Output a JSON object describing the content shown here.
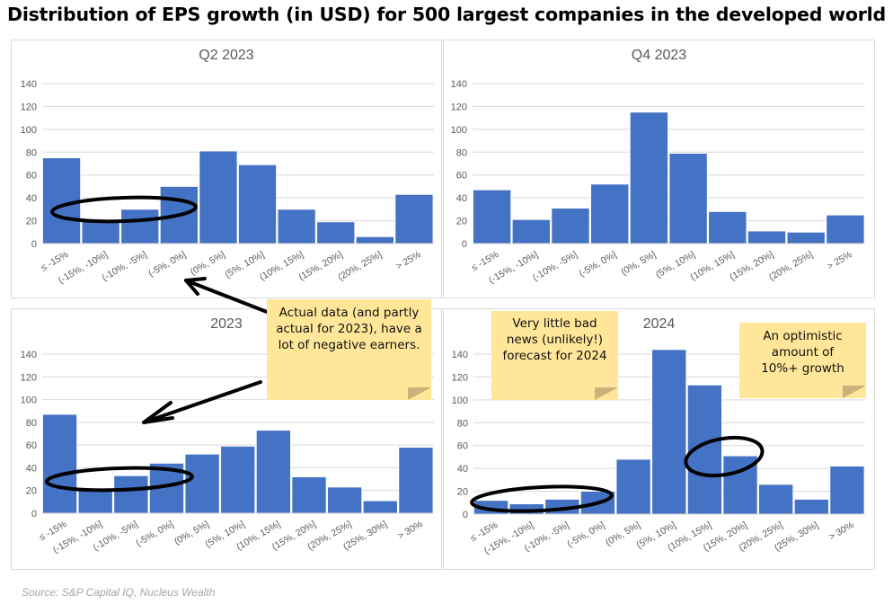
{
  "title": "Distribution of EPS growth (in USD) for 500 largest companies in the developed world",
  "source": "Source: S&P Capital IQ, Nucleus Wealth",
  "colors": {
    "bar": "#4472c4",
    "note": "#ffe699",
    "grid": "#d9d9d9"
  },
  "notes": [
    "Actual data (and partly actual for 2023), have a lot of negative earners.",
    "Very little bad news (unlikely!) forecast for 2024",
    "An optimistic amount of 10%+ growth"
  ],
  "chart_data": [
    {
      "type": "bar",
      "title": "Q2 2023",
      "ylim": [
        0,
        140
      ],
      "yticks": [
        0,
        20,
        40,
        60,
        80,
        100,
        120,
        140
      ],
      "grid": true,
      "categories": [
        "≤ -15%",
        "(-15%, -10%]",
        "(-10%, -5%]",
        "(-5%, 0%]",
        "(0%, 5%]",
        "(5%, 10%]",
        "(10%, 15%]",
        "(15%, 20%]",
        "(20%, 25%]",
        "> 25%"
      ],
      "values": [
        75,
        20,
        30,
        50,
        81,
        69,
        30,
        19,
        6,
        43
      ]
    },
    {
      "type": "bar",
      "title": "Q4 2023",
      "ylim": [
        0,
        140
      ],
      "yticks": [
        0,
        20,
        40,
        60,
        80,
        100,
        120,
        140
      ],
      "grid": true,
      "categories": [
        "≤ -15%",
        "(-15%, -10%]",
        "(-10%, -5%]",
        "(-5%, 0%]",
        "(0%, 5%]",
        "(5%, 10%]",
        "(10%, 15%]",
        "(15%, 20%]",
        "(20%, 25%]",
        "> 25%"
      ],
      "values": [
        47,
        21,
        31,
        52,
        115,
        79,
        28,
        11,
        10,
        25
      ]
    },
    {
      "type": "bar",
      "title": "2023",
      "ylim": [
        0,
        140
      ],
      "yticks": [
        0,
        20,
        40,
        60,
        80,
        100,
        120,
        140
      ],
      "grid": true,
      "categories": [
        "≤ -15%",
        "(-15%, -10%]",
        "(-10%, -5%]",
        "(-5%, 0%]",
        "(0%, 5%]",
        "(5%, 10%]",
        "(10%, 15%]",
        "(15%, 20%]",
        "(20%, 25%]",
        "(25%, 30%]",
        "> 30%"
      ],
      "values": [
        87,
        21,
        33,
        44,
        52,
        59,
        73,
        32,
        23,
        11,
        58
      ]
    },
    {
      "type": "bar",
      "title": "2024",
      "ylim": [
        0,
        140
      ],
      "yticks": [
        0,
        20,
        40,
        60,
        80,
        100,
        120,
        140
      ],
      "grid": true,
      "categories": [
        "≤ -15%",
        "(-15%, -10%]",
        "(-10%, -5%]",
        "(-5%, 0%]",
        "(0%, 5%]",
        "(5%, 10%]",
        "(10%, 15%]",
        "(15%, 20%]",
        "(20%, 25%]",
        "(25%, 30%]",
        "> 30%"
      ],
      "values": [
        12,
        9,
        13,
        20,
        48,
        144,
        113,
        51,
        26,
        13,
        42
      ]
    }
  ]
}
